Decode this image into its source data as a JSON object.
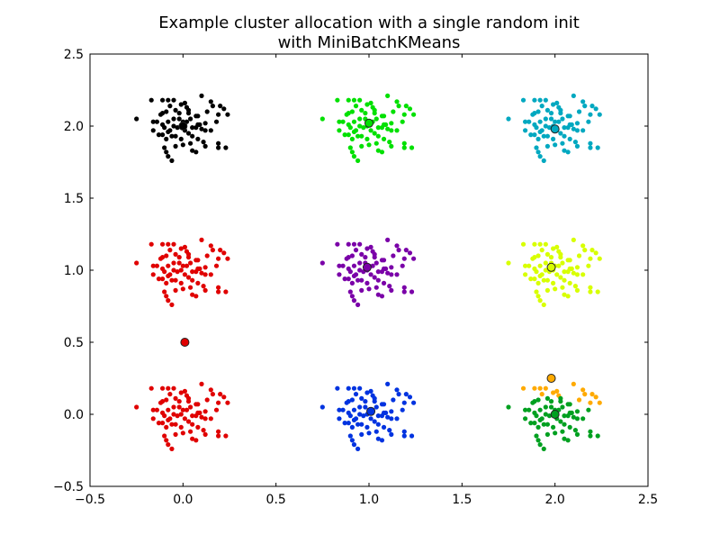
{
  "chart_data": {
    "type": "scatter",
    "title": [
      "Example cluster allocation with a single random init",
      "with MiniBatchKMeans"
    ],
    "xlabel": "",
    "ylabel": "",
    "xlim": [
      -0.5,
      2.5
    ],
    "ylim": [
      -0.5,
      2.5
    ],
    "xticks": [
      "−0.5",
      "0.0",
      "0.5",
      "1.0",
      "1.5",
      "2.0",
      "2.5"
    ],
    "yticks": [
      "−0.5",
      "0.0",
      "0.5",
      "1.0",
      "1.5",
      "2.0",
      "2.5"
    ],
    "xtick_values": [
      -0.5,
      0,
      0.5,
      1,
      1.5,
      2,
      2.5
    ],
    "ytick_values": [
      -0.5,
      0,
      0.5,
      1,
      1.5,
      2,
      2.5
    ],
    "grid": false,
    "clusters": [
      {
        "center": [
          0,
          2
        ],
        "color": "#000000"
      },
      {
        "center": [
          1,
          2
        ],
        "color": "#00e000"
      },
      {
        "center": [
          2,
          2
        ],
        "color": "#00a8c0"
      },
      {
        "center": [
          0,
          1
        ],
        "color": "#e00000"
      },
      {
        "center": [
          1,
          1
        ],
        "color": "#7a00a8"
      },
      {
        "center": [
          2,
          1
        ],
        "color": "#d8ff00"
      },
      {
        "center": [
          0,
          0
        ],
        "color": "#e00000"
      },
      {
        "center": [
          1,
          0
        ],
        "color": "#0033e0"
      },
      {
        "center": [
          2,
          0
        ],
        "color": "#00a020",
        "alt_color": "#ffaa00"
      }
    ],
    "point_offsets": [
      [
        -0.25,
        0.05
      ],
      [
        -0.17,
        0.18
      ],
      [
        -0.11,
        0.18
      ],
      [
        -0.08,
        0.18
      ],
      [
        -0.05,
        0.18
      ],
      [
        0.1,
        0.21
      ],
      [
        0.15,
        0.17
      ],
      [
        0.2,
        0.14
      ],
      [
        0.22,
        0.12
      ],
      [
        0.24,
        0.08
      ],
      [
        0.16,
        0.14
      ],
      [
        0.13,
        0.1
      ],
      [
        0.19,
        0.08
      ],
      [
        0.18,
        0.03
      ],
      [
        0.12,
        0.02
      ],
      [
        0.15,
        -0.03
      ],
      [
        0.19,
        -0.12
      ],
      [
        0.19,
        -0.15
      ],
      [
        0.23,
        -0.15
      ],
      [
        0.12,
        -0.14
      ],
      [
        0.08,
        -0.09
      ],
      [
        0.04,
        -0.12
      ],
      [
        0.05,
        -0.17
      ],
      [
        0.07,
        -0.18
      ],
      [
        0.0,
        -0.13
      ],
      [
        -0.04,
        -0.14
      ],
      [
        -0.06,
        -0.24
      ],
      [
        -0.08,
        -0.21
      ],
      [
        -0.09,
        -0.18
      ],
      [
        -0.1,
        -0.15
      ],
      [
        -0.09,
        -0.09
      ],
      [
        -0.13,
        -0.06
      ],
      [
        -0.11,
        -0.06
      ],
      [
        -0.16,
        -0.03
      ],
      [
        -0.16,
        0.03
      ],
      [
        -0.14,
        0.03
      ],
      [
        -0.11,
        0.01
      ],
      [
        -0.12,
        0.08
      ],
      [
        -0.11,
        0.09
      ],
      [
        -0.09,
        0.1
      ],
      [
        -0.07,
        0.14
      ],
      [
        -0.04,
        0.11
      ],
      [
        -0.01,
        0.15
      ],
      [
        0.01,
        0.16
      ],
      [
        0.02,
        0.13
      ],
      [
        0.03,
        0.09
      ],
      [
        0.04,
        0.05
      ],
      [
        0.07,
        0.07
      ],
      [
        0.08,
        0.07
      ],
      [
        0.09,
        0.01
      ],
      [
        0.1,
        -0.02
      ],
      [
        0.12,
        -0.03
      ],
      [
        0.05,
        -0.01
      ],
      [
        0.02,
        0.03
      ],
      [
        0.0,
        0.03
      ],
      [
        -0.01,
        0.0
      ],
      [
        -0.03,
        -0.01
      ],
      [
        -0.05,
        0.0
      ],
      [
        -0.07,
        -0.03
      ],
      [
        -0.08,
        -0.04
      ],
      [
        -0.06,
        -0.07
      ],
      [
        -0.04,
        -0.07
      ],
      [
        -0.01,
        -0.09
      ],
      [
        0.03,
        -0.05
      ],
      [
        0.05,
        -0.07
      ],
      [
        0.07,
        -0.01
      ],
      [
        -0.02,
        0.05
      ],
      [
        -0.05,
        0.05
      ],
      [
        -0.08,
        0.03
      ],
      [
        -0.1,
        -0.01
      ],
      [
        0.03,
        0.11
      ],
      [
        -0.02,
        0.09
      ],
      [
        0.08,
        0.01
      ],
      [
        0.11,
        -0.11
      ],
      [
        0.01,
        -0.03
      ]
    ],
    "centroids": [
      {
        "x": 0.0,
        "y": 2.0,
        "color": "#000000"
      },
      {
        "x": 1.0,
        "y": 2.02,
        "color": "#00e000"
      },
      {
        "x": 2.0,
        "y": 1.98,
        "color": "#00a8c0"
      },
      {
        "x": 0.01,
        "y": 0.5,
        "color": "#e00000"
      },
      {
        "x": 0.99,
        "y": 1.02,
        "color": "#7a00a8"
      },
      {
        "x": 1.98,
        "y": 1.02,
        "color": "#d8ff00"
      },
      {
        "x": 1.01,
        "y": 0.02,
        "color": "#0033e0"
      },
      {
        "x": 2.0,
        "y": 0.0,
        "color": "#00a020"
      },
      {
        "x": 1.98,
        "y": 0.25,
        "color": "#ffaa00"
      }
    ]
  }
}
